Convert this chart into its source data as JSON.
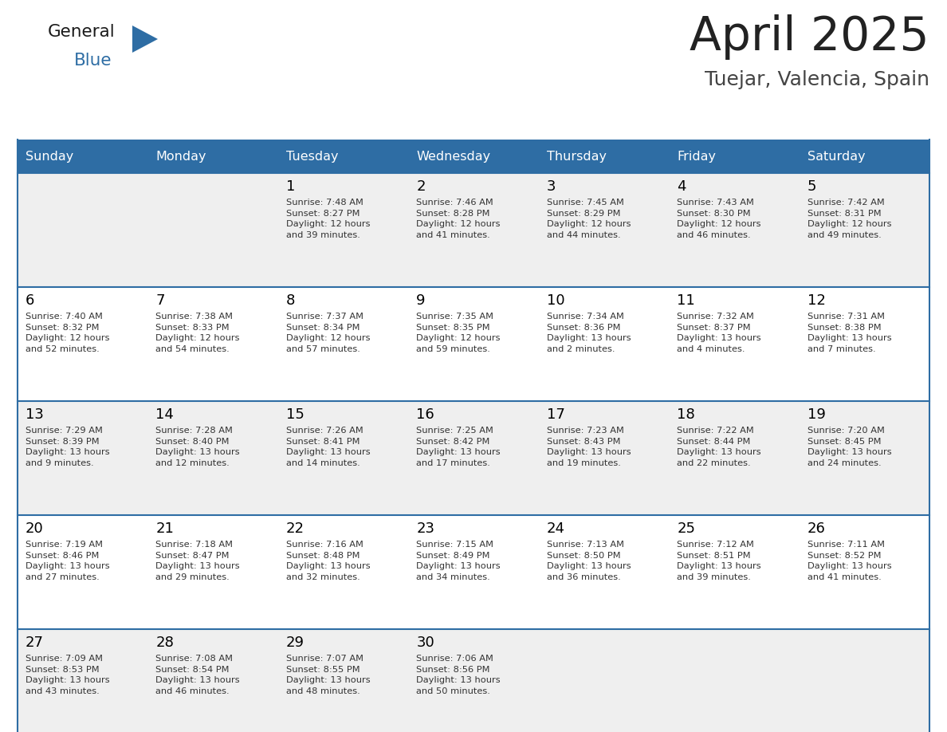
{
  "title": "April 2025",
  "subtitle": "Tuejar, Valencia, Spain",
  "header_bg": "#2E6DA4",
  "header_text": "#FFFFFF",
  "header_days": [
    "Sunday",
    "Monday",
    "Tuesday",
    "Wednesday",
    "Thursday",
    "Friday",
    "Saturday"
  ],
  "cell_bg_light": "#EFEFEF",
  "cell_bg_white": "#FFFFFF",
  "row_line_color": "#2E6DA4",
  "day_number_color": "#000000",
  "day_text_color": "#333333",
  "title_color": "#222222",
  "subtitle_color": "#444444",
  "logo_general_color": "#1a1a1a",
  "logo_blue_color": "#2E6DA4",
  "weeks": [
    [
      {
        "day": null,
        "info": null
      },
      {
        "day": null,
        "info": null
      },
      {
        "day": "1",
        "info": "Sunrise: 7:48 AM\nSunset: 8:27 PM\nDaylight: 12 hours\nand 39 minutes."
      },
      {
        "day": "2",
        "info": "Sunrise: 7:46 AM\nSunset: 8:28 PM\nDaylight: 12 hours\nand 41 minutes."
      },
      {
        "day": "3",
        "info": "Sunrise: 7:45 AM\nSunset: 8:29 PM\nDaylight: 12 hours\nand 44 minutes."
      },
      {
        "day": "4",
        "info": "Sunrise: 7:43 AM\nSunset: 8:30 PM\nDaylight: 12 hours\nand 46 minutes."
      },
      {
        "day": "5",
        "info": "Sunrise: 7:42 AM\nSunset: 8:31 PM\nDaylight: 12 hours\nand 49 minutes."
      }
    ],
    [
      {
        "day": "6",
        "info": "Sunrise: 7:40 AM\nSunset: 8:32 PM\nDaylight: 12 hours\nand 52 minutes."
      },
      {
        "day": "7",
        "info": "Sunrise: 7:38 AM\nSunset: 8:33 PM\nDaylight: 12 hours\nand 54 minutes."
      },
      {
        "day": "8",
        "info": "Sunrise: 7:37 AM\nSunset: 8:34 PM\nDaylight: 12 hours\nand 57 minutes."
      },
      {
        "day": "9",
        "info": "Sunrise: 7:35 AM\nSunset: 8:35 PM\nDaylight: 12 hours\nand 59 minutes."
      },
      {
        "day": "10",
        "info": "Sunrise: 7:34 AM\nSunset: 8:36 PM\nDaylight: 13 hours\nand 2 minutes."
      },
      {
        "day": "11",
        "info": "Sunrise: 7:32 AM\nSunset: 8:37 PM\nDaylight: 13 hours\nand 4 minutes."
      },
      {
        "day": "12",
        "info": "Sunrise: 7:31 AM\nSunset: 8:38 PM\nDaylight: 13 hours\nand 7 minutes."
      }
    ],
    [
      {
        "day": "13",
        "info": "Sunrise: 7:29 AM\nSunset: 8:39 PM\nDaylight: 13 hours\nand 9 minutes."
      },
      {
        "day": "14",
        "info": "Sunrise: 7:28 AM\nSunset: 8:40 PM\nDaylight: 13 hours\nand 12 minutes."
      },
      {
        "day": "15",
        "info": "Sunrise: 7:26 AM\nSunset: 8:41 PM\nDaylight: 13 hours\nand 14 minutes."
      },
      {
        "day": "16",
        "info": "Sunrise: 7:25 AM\nSunset: 8:42 PM\nDaylight: 13 hours\nand 17 minutes."
      },
      {
        "day": "17",
        "info": "Sunrise: 7:23 AM\nSunset: 8:43 PM\nDaylight: 13 hours\nand 19 minutes."
      },
      {
        "day": "18",
        "info": "Sunrise: 7:22 AM\nSunset: 8:44 PM\nDaylight: 13 hours\nand 22 minutes."
      },
      {
        "day": "19",
        "info": "Sunrise: 7:20 AM\nSunset: 8:45 PM\nDaylight: 13 hours\nand 24 minutes."
      }
    ],
    [
      {
        "day": "20",
        "info": "Sunrise: 7:19 AM\nSunset: 8:46 PM\nDaylight: 13 hours\nand 27 minutes."
      },
      {
        "day": "21",
        "info": "Sunrise: 7:18 AM\nSunset: 8:47 PM\nDaylight: 13 hours\nand 29 minutes."
      },
      {
        "day": "22",
        "info": "Sunrise: 7:16 AM\nSunset: 8:48 PM\nDaylight: 13 hours\nand 32 minutes."
      },
      {
        "day": "23",
        "info": "Sunrise: 7:15 AM\nSunset: 8:49 PM\nDaylight: 13 hours\nand 34 minutes."
      },
      {
        "day": "24",
        "info": "Sunrise: 7:13 AM\nSunset: 8:50 PM\nDaylight: 13 hours\nand 36 minutes."
      },
      {
        "day": "25",
        "info": "Sunrise: 7:12 AM\nSunset: 8:51 PM\nDaylight: 13 hours\nand 39 minutes."
      },
      {
        "day": "26",
        "info": "Sunrise: 7:11 AM\nSunset: 8:52 PM\nDaylight: 13 hours\nand 41 minutes."
      }
    ],
    [
      {
        "day": "27",
        "info": "Sunrise: 7:09 AM\nSunset: 8:53 PM\nDaylight: 13 hours\nand 43 minutes."
      },
      {
        "day": "28",
        "info": "Sunrise: 7:08 AM\nSunset: 8:54 PM\nDaylight: 13 hours\nand 46 minutes."
      },
      {
        "day": "29",
        "info": "Sunrise: 7:07 AM\nSunset: 8:55 PM\nDaylight: 13 hours\nand 48 minutes."
      },
      {
        "day": "30",
        "info": "Sunrise: 7:06 AM\nSunset: 8:56 PM\nDaylight: 13 hours\nand 50 minutes."
      },
      {
        "day": null,
        "info": null
      },
      {
        "day": null,
        "info": null
      },
      {
        "day": null,
        "info": null
      }
    ]
  ]
}
